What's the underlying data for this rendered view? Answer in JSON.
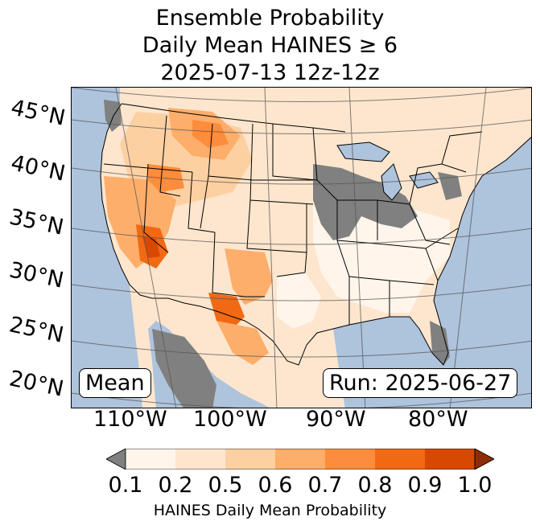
{
  "title": {
    "line1": "Ensemble Probability",
    "line2": "Daily Mean HAINES ≥ 6",
    "line3": "2025-07-13 12z-12z"
  },
  "map": {
    "lat_labels": [
      "45°N",
      "40°N",
      "35°N",
      "30°N",
      "25°N",
      "20°N"
    ],
    "lon_labels": [
      "110°W",
      "100°W",
      "90°W",
      "80°W"
    ],
    "stat_box": "Mean",
    "run_box": "Run: 2025-06-27",
    "colors": {
      "ocean": "#aec3dc",
      "land_nodata": "#ffffff",
      "missing": "#808080",
      "border": "#000000"
    }
  },
  "colorbar": {
    "ticks": [
      "0.1",
      "0.2",
      "0.5",
      "0.6",
      "0.7",
      "0.8",
      "0.9",
      "1.0"
    ],
    "under_color": "#808080",
    "colors": [
      "#fff5eb",
      "#fee6ce",
      "#fdd0a2",
      "#fdae6b",
      "#fd8d3c",
      "#f16913",
      "#d94801"
    ],
    "over_color": "#8c2d04",
    "label": "HAINES Daily Mean Probability"
  }
}
